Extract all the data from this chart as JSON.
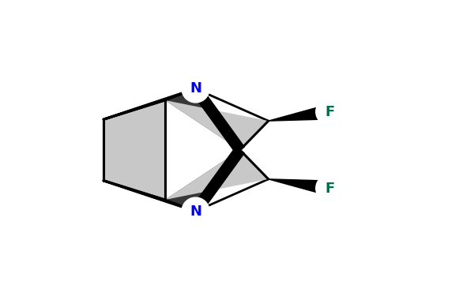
{
  "bg_color": "#ffffff",
  "N_color": "#0000ff",
  "F_color": "#007050",
  "bond_color": "#000000",
  "dark_fill": "#383838",
  "mid_fill": "#888888",
  "light_fill": "#c8c8c8",
  "xlim": [
    -1.8,
    2.4
  ],
  "ylim": [
    -1.4,
    1.4
  ],
  "figw": 5.76,
  "figh": 3.8,
  "dpi": 100
}
